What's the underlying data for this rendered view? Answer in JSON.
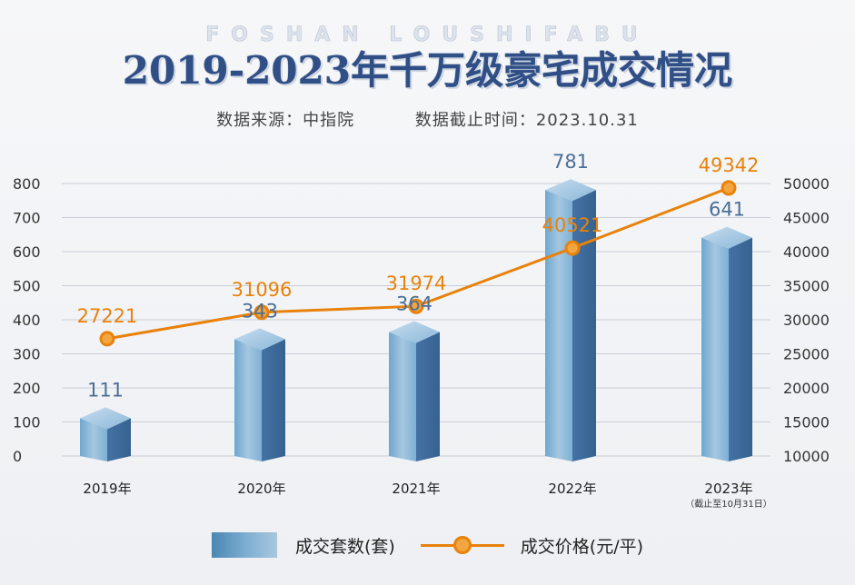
{
  "header": {
    "watermark": "FOSHAN LOUSHIFABU",
    "title": "2019-2023年千万级豪宅成交情况",
    "source": "数据来源：中指院",
    "cutoff": "数据截止时间：2023.10.31"
  },
  "colors": {
    "bar": "#5b8fc0",
    "line": "#e8820c",
    "title": "#2f4f86"
  },
  "chart_data": {
    "type": "bar",
    "categories": [
      "2019年",
      "2020年",
      "2021年",
      "2022年",
      "2023年"
    ],
    "category_note": "（截止至10月31日）",
    "series": [
      {
        "name": "成交套数(套)",
        "type": "bar",
        "axis": "left",
        "values": [
          111,
          343,
          364,
          781,
          641
        ]
      },
      {
        "name": "成交价格(元/平)",
        "type": "line",
        "axis": "right",
        "values": [
          27221,
          31096,
          31974,
          40521,
          49342
        ]
      }
    ],
    "y_left": {
      "min": 0,
      "max": 800,
      "step": 100
    },
    "y_right": {
      "min": 10000,
      "max": 50000,
      "step": 5000
    },
    "grid": true,
    "legend_position": "bottom"
  }
}
